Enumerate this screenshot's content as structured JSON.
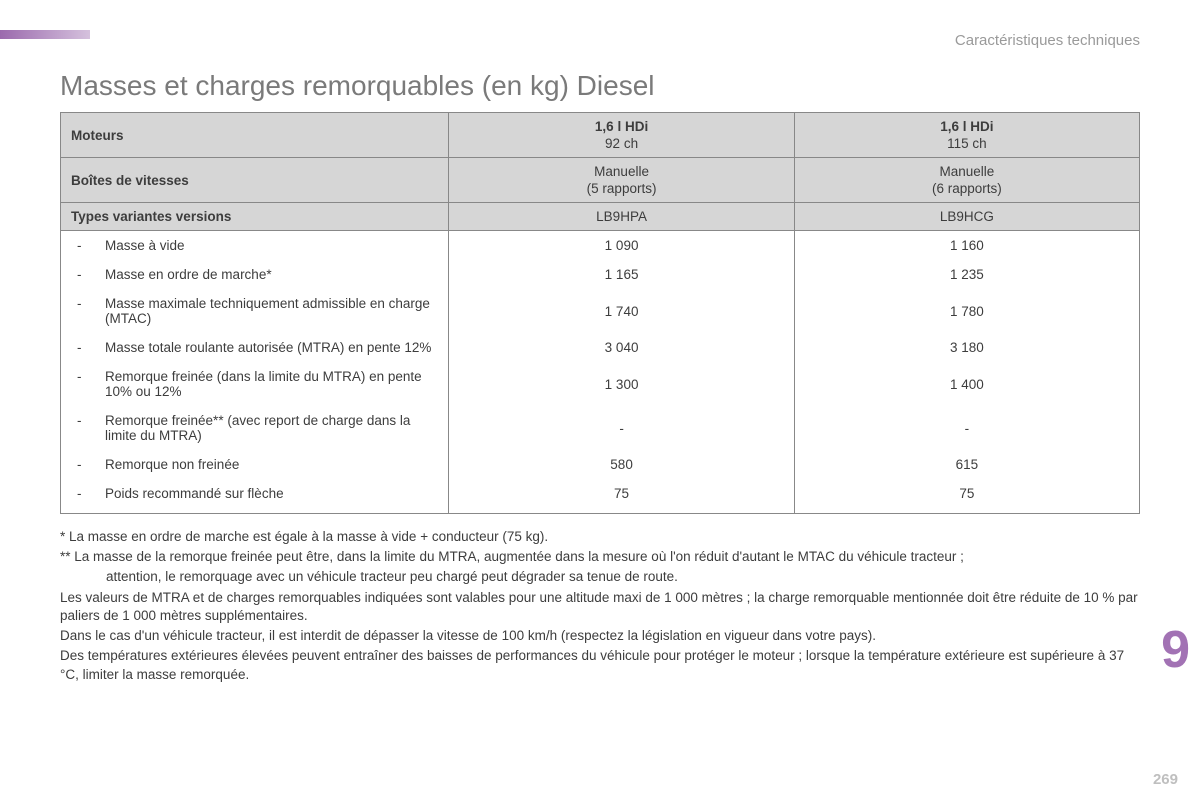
{
  "section_label": "Caractéristiques techniques",
  "title": "Masses et charges remorquables (en kg) Diesel",
  "chapter_number": "9",
  "page_number": "269",
  "table": {
    "header": {
      "engines_label": "Moteurs",
      "engine1": "1,6 l HDi",
      "engine1_power": "92 ch",
      "engine2": "1,6 l HDi",
      "engine2_power": "115 ch",
      "gearbox_label": "Boîtes de vitesses",
      "gearbox1": "Manuelle",
      "gearbox1_sub": "(5 rapports)",
      "gearbox2": "Manuelle",
      "gearbox2_sub": "(6 rapports)",
      "variants_label": "Types variantes versions",
      "variant1": "LB9HPA",
      "variant2": "LB9HCG"
    },
    "rows": [
      {
        "label": "Masse à vide",
        "v1": "1 090",
        "v2": "1 160"
      },
      {
        "label": "Masse en ordre de marche*",
        "v1": "1 165",
        "v2": "1 235"
      },
      {
        "label": "Masse maximale techniquement admissible en charge (MTAC)",
        "v1": "1 740",
        "v2": "1 780"
      },
      {
        "label": "Masse totale roulante autorisée (MTRA) en pente 12%",
        "v1": "3 040",
        "v2": "3 180"
      },
      {
        "label": "Remorque freinée (dans la limite du MTRA) en pente 10% ou 12%",
        "v1": "1 300",
        "v2": "1 400"
      },
      {
        "label": "Remorque freinée** (avec report de charge dans la limite du MTRA)",
        "v1": "-",
        "v2": "-"
      },
      {
        "label": "Remorque non freinée",
        "v1": "580",
        "v2": "615"
      },
      {
        "label": "Poids recommandé sur flèche",
        "v1": "75",
        "v2": "75"
      }
    ]
  },
  "notes": {
    "n1": "* La masse en ordre de marche est égale à la masse à vide + conducteur (75 kg).",
    "n2a": "** La masse de la remorque freinée peut être, dans la limite du MTRA, augmentée dans la mesure où l'on réduit d'autant le MTAC du véhicule tracteur ;",
    "n2b": "attention, le remorquage avec un véhicule tracteur peu chargé peut dégrader sa tenue de route.",
    "n3": "Les valeurs de MTRA et de charges remorquables indiquées sont valables pour une altitude maxi de 1 000 mètres ; la charge remorquable mentionnée doit être réduite de 10 % par paliers de 1 000 mètres supplémentaires.",
    "n4": "Dans le cas d'un véhicule tracteur, il est interdit de dépasser la vitesse de 100 km/h (respectez la législation en vigueur dans votre pays).",
    "n5": "Des températures extérieures élevées peuvent entraîner des baisses de performances du véhicule pour protéger le moteur ; lorsque la température extérieure est supérieure à 37 °C, limiter la masse remorquée."
  }
}
